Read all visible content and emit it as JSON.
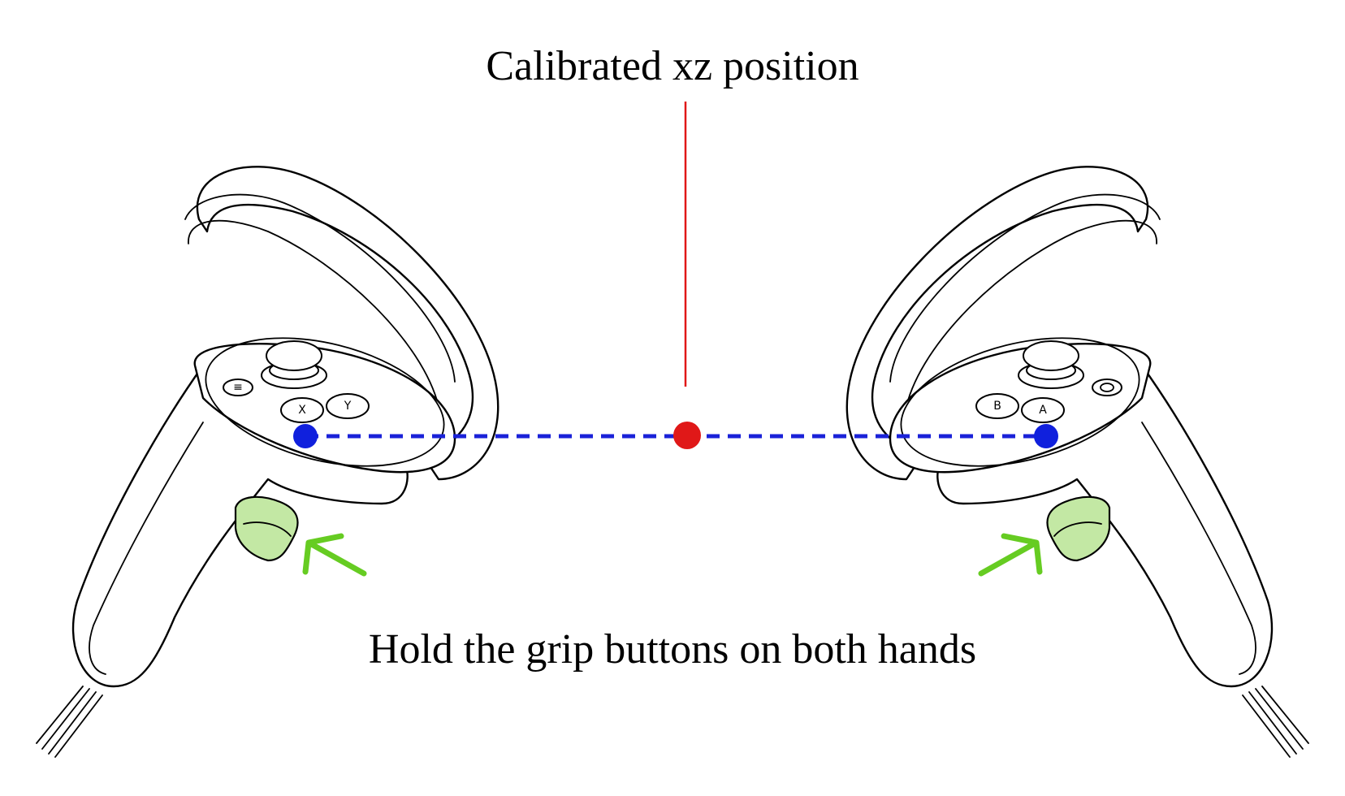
{
  "labels": {
    "title": "Calibrated xz position",
    "instruction": "Hold the grip buttons on both hands"
  },
  "left_controller": {
    "buttons": [
      "X",
      "Y"
    ],
    "menu_icon": "menu-icon",
    "grip_color": "#c3e8a4"
  },
  "right_controller": {
    "buttons": [
      "B",
      "A"
    ],
    "menu_icon": "oculus-icon",
    "grip_color": "#c3e8a4"
  },
  "colors": {
    "calibrated_point": "#e01818",
    "controller_points": "#1020dd",
    "connecting_line": "#1a22d8",
    "arrows": "#66cc22",
    "outline": "#000000"
  }
}
